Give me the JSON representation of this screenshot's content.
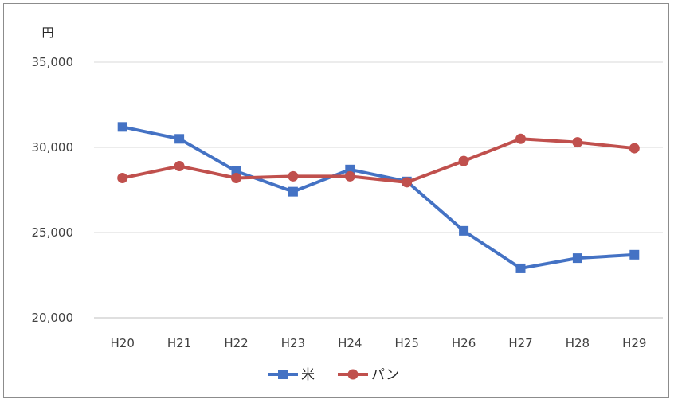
{
  "chart_data": {
    "type": "line",
    "y_unit_label": "円",
    "categories": [
      "H20",
      "H21",
      "H22",
      "H23",
      "H24",
      "H25",
      "H26",
      "H27",
      "H28",
      "H29"
    ],
    "series": [
      {
        "name": "米",
        "color": "#4472c4",
        "marker": "square",
        "values": [
          31200,
          30500,
          28600,
          27400,
          28700,
          28000,
          25100,
          22900,
          23500,
          23700
        ]
      },
      {
        "name": "パン",
        "color": "#c0504d",
        "marker": "circle",
        "values": [
          28200,
          28900,
          28200,
          28300,
          28300,
          27950,
          29200,
          30500,
          30300,
          29950
        ]
      }
    ],
    "ylim": [
      20000,
      35000
    ],
    "yticks": [
      "20,000",
      "25,000",
      "30,000",
      "35,000"
    ],
    "ytick_values": [
      20000,
      25000,
      30000,
      35000
    ],
    "grid": true,
    "legend_position": "bottom"
  }
}
